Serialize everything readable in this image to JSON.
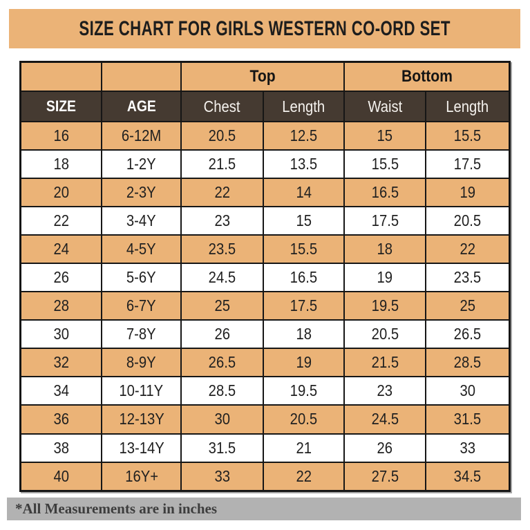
{
  "banner": {
    "title": "SIZE CHART FOR GIRLS WESTERN CO-ORD SET"
  },
  "chart_data": {
    "type": "table",
    "title": "SIZE CHART FOR GIRLS WESTERN CO-ORD SET",
    "group_headers": {
      "top": "Top",
      "bottom": "Bottom"
    },
    "column_headers": [
      "SIZE",
      "AGE",
      "Chest",
      "Length",
      "Waist",
      "Length"
    ],
    "rows": [
      [
        "16",
        "6-12M",
        "20.5",
        "12.5",
        "15",
        "15.5"
      ],
      [
        "18",
        "1-2Y",
        "21.5",
        "13.5",
        "15.5",
        "17.5"
      ],
      [
        "20",
        "2-3Y",
        "22",
        "14",
        "16.5",
        "19"
      ],
      [
        "22",
        "3-4Y",
        "23",
        "15",
        "17.5",
        "20.5"
      ],
      [
        "24",
        "4-5Y",
        "23.5",
        "15.5",
        "18",
        "22"
      ],
      [
        "26",
        "5-6Y",
        "24.5",
        "16.5",
        "19",
        "23.5"
      ],
      [
        "28",
        "6-7Y",
        "25",
        "17.5",
        "19.5",
        "25"
      ],
      [
        "30",
        "7-8Y",
        "26",
        "18",
        "20.5",
        "26.5"
      ],
      [
        "32",
        "8-9Y",
        "26.5",
        "19",
        "21.5",
        "28.5"
      ],
      [
        "34",
        "10-11Y",
        "28.5",
        "19.5",
        "23",
        "30"
      ],
      [
        "36",
        "12-13Y",
        "30",
        "20.5",
        "24.5",
        "31.5"
      ],
      [
        "38",
        "13-14Y",
        "31.5",
        "21",
        "26",
        "33"
      ],
      [
        "40",
        "16Y+",
        "33",
        "22",
        "27.5",
        "34.5"
      ]
    ],
    "note": "*All Measurements are in inches",
    "units": "inches"
  },
  "footer": {
    "note": "*All Measurements are in inches"
  },
  "colors": {
    "tan": "#ebb377",
    "dark_brown": "#453a31",
    "border": "#161616",
    "footer_gray": "#b2b2b2",
    "footer_text": "#3d3d3d"
  }
}
